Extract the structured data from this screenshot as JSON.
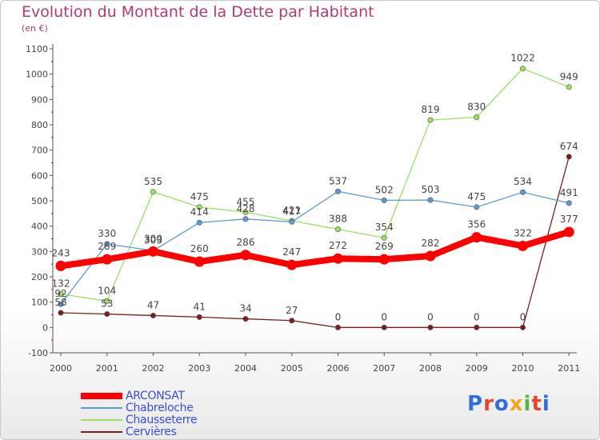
{
  "title": "Evolution du Montant de la Dette par Habitant",
  "unit": "(en €)",
  "logo": {
    "text": "Proxiti",
    "letter_colors": [
      "#2f6fd6",
      "#e8452c",
      "#2f6fd6",
      "#f2a51a",
      "#56b847",
      "#e8452c",
      "#2f6fd6"
    ]
  },
  "chart_data": {
    "type": "line",
    "title": "Evolution du Montant de la Dette par Habitant",
    "ylabel": "(en €)",
    "xlabel": "",
    "categories": [
      "2000",
      "2001",
      "2002",
      "2003",
      "2004",
      "2005",
      "2006",
      "2007",
      "2008",
      "2009",
      "2010",
      "2011"
    ],
    "ylim": [
      -100,
      1100
    ],
    "yticks": [
      -100,
      0,
      100,
      200,
      300,
      400,
      500,
      600,
      700,
      800,
      900,
      1000,
      1100
    ],
    "ytick_labels": [
      "-100",
      "0",
      "100",
      "200",
      "300",
      "400",
      "500",
      "600",
      "700",
      "800",
      "900",
      "1000",
      "1100"
    ],
    "grid": false,
    "legend_position": "bottom-left",
    "series": [
      {
        "name": "ARCONSAT",
        "color": "#ff0000",
        "thick": true,
        "values": [
          243,
          269,
          300,
          260,
          286,
          247,
          272,
          269,
          282,
          356,
          322,
          377
        ],
        "labels": [
          "243",
          "269",
          "300",
          "260",
          "286",
          "247",
          "272",
          "269",
          "282",
          "356",
          "322",
          "377"
        ]
      },
      {
        "name": "Chabreloche",
        "color": "#5b9bd5",
        "thick": false,
        "values": [
          92,
          330,
          303,
          414,
          428,
          417,
          537,
          502,
          503,
          475,
          534,
          491
        ],
        "labels": [
          "92",
          "330",
          "303",
          "414",
          "428",
          "417",
          "537",
          "502",
          "503",
          "475",
          "534",
          "491"
        ]
      },
      {
        "name": "Chausseterre",
        "color": "#99e05e",
        "thick": false,
        "values": [
          132,
          104,
          535,
          475,
          455,
          421,
          388,
          354,
          819,
          830,
          1022,
          949
        ],
        "labels": [
          "132",
          "104",
          "535",
          "475",
          "455",
          "421",
          "388",
          "354",
          "819",
          "830",
          "1022",
          "949"
        ]
      },
      {
        "name": "Cervières",
        "color": "#7a1f1f",
        "thick": false,
        "values": [
          58,
          53,
          47,
          41,
          34,
          27,
          0,
          0,
          0,
          0,
          0,
          674
        ],
        "labels": [
          "58",
          "53",
          "47",
          "41",
          "34",
          "27",
          "0",
          "0",
          "0",
          "0",
          "0",
          "674"
        ]
      }
    ]
  }
}
